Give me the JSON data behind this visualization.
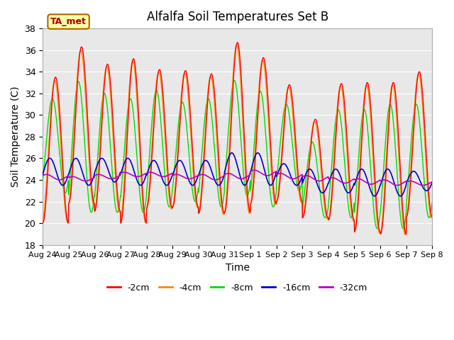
{
  "title": "Alfalfa Soil Temperatures Set B",
  "xlabel": "Time",
  "ylabel": "Soil Temperature (C)",
  "ylim": [
    18,
    38
  ],
  "tick_labels": [
    "Aug 24",
    "Aug 25",
    "Aug 26",
    "Aug 27",
    "Aug 28",
    "Aug 29",
    "Aug 30",
    "Aug 31",
    "Sep 1",
    "Sep 2",
    "Sep 3",
    "Sep 4",
    "Sep 5",
    "Sep 6",
    "Sep 7",
    "Sep 8"
  ],
  "annotation_text": "TA_met",
  "annotation_color": "#aa0000",
  "annotation_bg": "#ffffaa",
  "annotation_border": "#aa6600",
  "plot_bg_color": "#e8e8e8",
  "line_colors": [
    "#ff0000",
    "#ff8800",
    "#00dd00",
    "#0000cc",
    "#bb00bb"
  ],
  "line_labels": [
    "-2cm",
    "-4cm",
    "-8cm",
    "-16cm",
    "-32cm"
  ],
  "n_days": 15,
  "pts_per_day": 96,
  "max_2": [
    33.5,
    36.3,
    34.7,
    35.2,
    34.2,
    34.1,
    33.8,
    36.7,
    35.3,
    32.8,
    29.6,
    32.9,
    33.0,
    33.0,
    34.0
  ],
  "min_2": [
    20.0,
    21.8,
    21.1,
    20.0,
    21.4,
    21.5,
    20.9,
    21.0,
    21.8,
    22.0,
    20.5,
    20.3,
    19.2,
    19.0,
    20.6
  ],
  "max_4": [
    33.2,
    36.0,
    34.5,
    35.0,
    34.0,
    33.9,
    33.6,
    36.5,
    35.1,
    32.6,
    29.4,
    32.7,
    32.8,
    32.8,
    33.8
  ],
  "min_4": [
    20.1,
    21.7,
    21.0,
    20.1,
    21.3,
    21.4,
    20.8,
    20.9,
    21.7,
    21.9,
    20.4,
    20.2,
    19.1,
    18.9,
    20.5
  ],
  "max_8": [
    31.5,
    33.1,
    32.0,
    31.5,
    32.3,
    31.2,
    31.5,
    33.2,
    32.2,
    31.0,
    27.5,
    30.5,
    30.5,
    31.0,
    31.0
  ],
  "min_8": [
    22.8,
    21.0,
    21.0,
    21.0,
    21.5,
    22.0,
    21.5,
    22.5,
    21.5,
    23.0,
    20.5,
    20.5,
    19.5,
    19.5,
    20.5
  ],
  "max_16": [
    26.0,
    26.0,
    26.0,
    26.0,
    25.8,
    25.8,
    25.8,
    26.5,
    26.5,
    25.5,
    25.0,
    25.0,
    25.0,
    25.0,
    24.8
  ],
  "min_16": [
    23.5,
    23.5,
    23.8,
    23.5,
    23.5,
    23.5,
    23.5,
    23.5,
    23.5,
    23.5,
    22.8,
    22.8,
    22.5,
    22.5,
    23.0
  ],
  "max_32": [
    24.5,
    24.3,
    24.5,
    24.7,
    24.7,
    24.5,
    24.5,
    24.6,
    24.9,
    24.6,
    24.4,
    24.2,
    24.1,
    24.0,
    23.9
  ],
  "min_32": [
    24.0,
    23.9,
    24.1,
    24.3,
    24.3,
    24.1,
    24.0,
    24.1,
    24.4,
    24.1,
    23.9,
    23.7,
    23.6,
    23.5,
    23.5
  ],
  "phase_2": 0.0,
  "phase_4": 0.03,
  "phase_8": 0.12,
  "phase_16": 0.22,
  "phase_32": 0.35
}
